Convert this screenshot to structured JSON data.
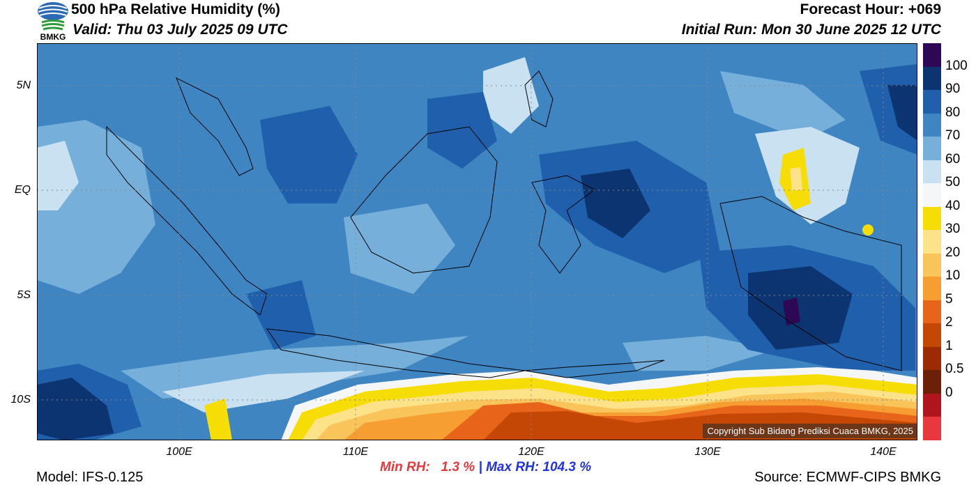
{
  "header": {
    "title": "500 hPa Relative Humidity (%)",
    "valid": "Valid: Thu 03 July 2025 09 UTC",
    "forecast_hour": "Forecast Hour: +069",
    "initial_run": "Initial Run: Mon 30 June 2025 12 UTC",
    "logo_text": "BMKG"
  },
  "axes": {
    "lat_labels": [
      "5N",
      "EQ",
      "5S",
      "10S"
    ],
    "lon_labels": [
      "100E",
      "110E",
      "120E",
      "130E",
      "140E"
    ]
  },
  "colorbar": {
    "labels": [
      "100",
      "90",
      "80",
      "70",
      "60",
      "50",
      "40",
      "30",
      "20",
      "10",
      "5",
      "2",
      "1",
      "0.5",
      "0"
    ],
    "colors": [
      "#2e0854",
      "#0c3470",
      "#1f5fab",
      "#3e85c2",
      "#76afd9",
      "#c9e1f0",
      "#f4f6f7",
      "#f7dd06",
      "#fce389",
      "#f9c55b",
      "#f79e33",
      "#e7641a",
      "#c44706",
      "#9b2a05",
      "#6c2008",
      "#b0151e",
      "#e8383d"
    ]
  },
  "stats": {
    "min_label": "Min RH:",
    "min_value": "1.3 %",
    "separator": "|",
    "max_label": "Max RH:",
    "max_value": "104.3 %"
  },
  "footer": {
    "model": "Model: IFS-0.125",
    "source": "Source: ECMWF-CIPS BMKG",
    "copyright": "Copyright Sub Bidang Prediksi Cuaca BMKG, 2025"
  }
}
